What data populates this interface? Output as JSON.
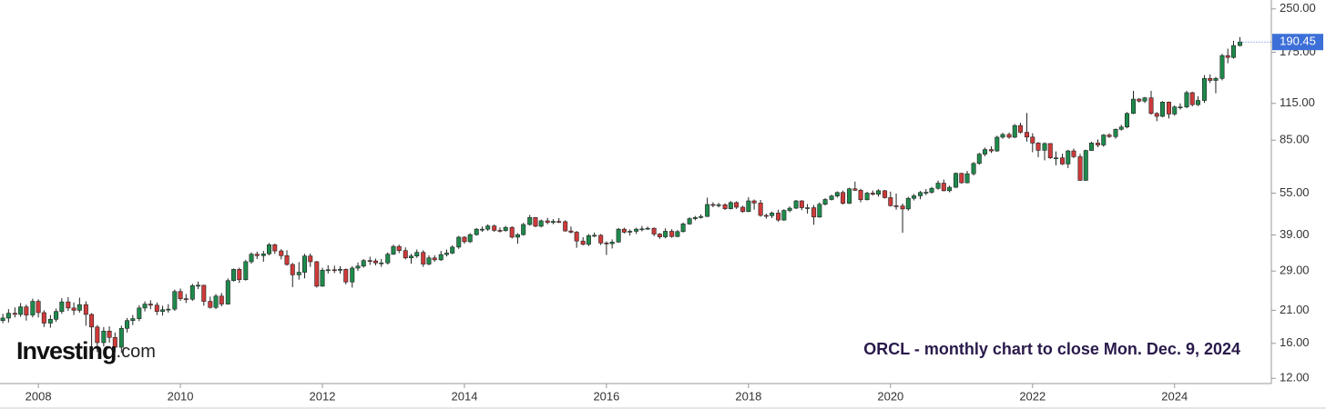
{
  "chart_data": {
    "type": "candlestick",
    "annotation": "ORCL - monthly chart to close Mon. Dec. 9, 2024",
    "watermark": {
      "brand": "Investing",
      "suffix": ".com"
    },
    "log_scale": true,
    "up_color": "#1e8a4c",
    "down_color": "#cf3a3a",
    "last_price_color": "#3d6fd8",
    "xlim": [
      2007.46,
      2025.35
    ],
    "xticks": [
      2008,
      2010,
      2012,
      2014,
      2016,
      2018,
      2020,
      2022,
      2024
    ],
    "ylim": [
      11.5,
      269
    ],
    "yticks": [
      {
        "value": 12,
        "label": "12.00"
      },
      {
        "value": 16,
        "label": "16.00"
      },
      {
        "value": 21,
        "label": "21.00"
      },
      {
        "value": 29,
        "label": "29.00"
      },
      {
        "value": 39,
        "label": "39.00"
      },
      {
        "value": 55,
        "label": "55.00"
      },
      {
        "value": 85,
        "label": "85.00"
      },
      {
        "value": 115,
        "label": "115.00"
      },
      {
        "value": 175,
        "label": "175.00"
      },
      {
        "value": 250,
        "label": "250.00"
      }
    ],
    "x": [
      2007.5,
      2007.58,
      2007.67,
      2007.75,
      2007.83,
      2007.92,
      2008,
      2008.08,
      2008.17,
      2008.25,
      2008.33,
      2008.42,
      2008.5,
      2008.58,
      2008.67,
      2008.75,
      2008.83,
      2008.92,
      2009,
      2009.08,
      2009.17,
      2009.25,
      2009.33,
      2009.42,
      2009.5,
      2009.58,
      2009.67,
      2009.75,
      2009.83,
      2009.92,
      2010,
      2010.08,
      2010.17,
      2010.25,
      2010.33,
      2010.42,
      2010.5,
      2010.58,
      2010.67,
      2010.75,
      2010.83,
      2010.92,
      2011,
      2011.08,
      2011.17,
      2011.25,
      2011.33,
      2011.42,
      2011.5,
      2011.58,
      2011.67,
      2011.75,
      2011.83,
      2011.92,
      2012,
      2012.08,
      2012.17,
      2012.25,
      2012.33,
      2012.42,
      2012.5,
      2012.58,
      2012.67,
      2012.75,
      2012.83,
      2012.92,
      2013,
      2013.08,
      2013.17,
      2013.25,
      2013.33,
      2013.42,
      2013.5,
      2013.58,
      2013.67,
      2013.75,
      2013.83,
      2013.92,
      2014,
      2014.08,
      2014.17,
      2014.25,
      2014.33,
      2014.42,
      2014.5,
      2014.58,
      2014.67,
      2014.75,
      2014.83,
      2014.92,
      2015,
      2015.08,
      2015.17,
      2015.25,
      2015.33,
      2015.42,
      2015.5,
      2015.58,
      2015.67,
      2015.75,
      2015.83,
      2015.92,
      2016,
      2016.08,
      2016.17,
      2016.25,
      2016.33,
      2016.42,
      2016.5,
      2016.58,
      2016.67,
      2016.75,
      2016.83,
      2016.92,
      2017,
      2017.08,
      2017.17,
      2017.25,
      2017.33,
      2017.42,
      2017.5,
      2017.58,
      2017.67,
      2017.75,
      2017.83,
      2017.92,
      2018,
      2018.08,
      2018.17,
      2018.25,
      2018.33,
      2018.42,
      2018.5,
      2018.58,
      2018.67,
      2018.75,
      2018.83,
      2018.92,
      2019,
      2019.08,
      2019.17,
      2019.25,
      2019.33,
      2019.42,
      2019.5,
      2019.58,
      2019.67,
      2019.75,
      2019.83,
      2019.92,
      2020,
      2020.08,
      2020.17,
      2020.25,
      2020.33,
      2020.42,
      2020.5,
      2020.58,
      2020.67,
      2020.75,
      2020.83,
      2020.92,
      2021,
      2021.08,
      2021.17,
      2021.25,
      2021.33,
      2021.42,
      2021.5,
      2021.58,
      2021.67,
      2021.75,
      2021.83,
      2021.92,
      2022,
      2022.08,
      2022.17,
      2022.25,
      2022.33,
      2022.42,
      2022.5,
      2022.58,
      2022.67,
      2022.75,
      2022.83,
      2022.92,
      2023,
      2023.08,
      2023.17,
      2023.25,
      2023.33,
      2023.42,
      2023.5,
      2023.58,
      2023.67,
      2023.75,
      2023.83,
      2023.92,
      2024,
      2024.08,
      2024.17,
      2024.25,
      2024.33,
      2024.42,
      2024.5,
      2024.58,
      2024.67,
      2024.75,
      2024.83,
      2024.92
    ],
    "ohlc": [
      [
        19.3,
        20.4,
        18.9,
        19.7
      ],
      [
        19.7,
        21.2,
        19.0,
        20.5
      ],
      [
        20.5,
        21.5,
        19.8,
        20.3
      ],
      [
        20.3,
        22.3,
        19.9,
        21.6
      ],
      [
        21.6,
        22.0,
        19.3,
        20.2
      ],
      [
        20.2,
        23.1,
        19.8,
        22.6
      ],
      [
        22.6,
        23.0,
        19.8,
        20.6
      ],
      [
        20.6,
        21.0,
        18.3,
        18.9
      ],
      [
        18.9,
        20.2,
        18.2,
        19.5
      ],
      [
        19.5,
        21.3,
        19.1,
        20.8
      ],
      [
        20.8,
        23.2,
        20.4,
        22.5
      ],
      [
        22.5,
        23.4,
        20.9,
        21.4
      ],
      [
        21.4,
        22.4,
        20.2,
        21.0
      ],
      [
        21.0,
        23.3,
        20.6,
        22.0
      ],
      [
        22.0,
        22.6,
        18.5,
        20.3
      ],
      [
        20.3,
        20.5,
        15.2,
        18.3
      ],
      [
        18.3,
        18.6,
        14.9,
        16.1
      ],
      [
        16.1,
        18.3,
        15.6,
        17.7
      ],
      [
        17.7,
        18.4,
        16.1,
        16.8
      ],
      [
        16.8,
        17.5,
        14.9,
        15.5
      ],
      [
        15.5,
        18.5,
        14.8,
        18.1
      ],
      [
        18.1,
        19.7,
        17.5,
        19.3
      ],
      [
        19.3,
        20.2,
        18.6,
        19.6
      ],
      [
        19.6,
        21.9,
        19.2,
        21.4
      ],
      [
        21.4,
        22.6,
        20.8,
        22.1
      ],
      [
        22.1,
        22.8,
        21.2,
        21.9
      ],
      [
        21.9,
        22.4,
        20.2,
        20.8
      ],
      [
        20.8,
        21.8,
        20.1,
        21.1
      ],
      [
        21.1,
        22.1,
        20.6,
        21.2
      ],
      [
        21.2,
        24.9,
        20.9,
        24.5
      ],
      [
        24.5,
        25.1,
        22.7,
        23.1
      ],
      [
        23.1,
        24.0,
        22.3,
        23.0
      ],
      [
        23.0,
        26.1,
        22.7,
        25.7
      ],
      [
        25.7,
        26.6,
        25.0,
        25.8
      ],
      [
        25.8,
        25.9,
        21.8,
        22.6
      ],
      [
        22.6,
        23.5,
        21.3,
        21.5
      ],
      [
        21.5,
        24.0,
        21.2,
        23.6
      ],
      [
        23.6,
        24.2,
        21.7,
        22.1
      ],
      [
        22.1,
        27.3,
        22.0,
        26.8
      ],
      [
        26.8,
        29.6,
        26.6,
        29.4
      ],
      [
        29.4,
        29.8,
        26.3,
        27.0
      ],
      [
        27.0,
        31.8,
        26.8,
        31.3
      ],
      [
        31.3,
        33.8,
        30.8,
        33.3
      ],
      [
        33.3,
        34.0,
        32.0,
        32.9
      ],
      [
        32.9,
        34.2,
        31.3,
        33.4
      ],
      [
        33.4,
        36.5,
        33.0,
        36.0
      ],
      [
        36.0,
        36.3,
        33.4,
        34.2
      ],
      [
        34.2,
        34.7,
        31.9,
        32.9
      ],
      [
        32.9,
        34.4,
        30.3,
        30.6
      ],
      [
        30.6,
        31.0,
        25.4,
        28.1
      ],
      [
        28.1,
        31.2,
        27.0,
        28.7
      ],
      [
        28.7,
        33.4,
        27.3,
        32.8
      ],
      [
        32.8,
        33.5,
        30.0,
        31.3
      ],
      [
        31.3,
        31.5,
        25.3,
        25.6
      ],
      [
        25.6,
        29.8,
        25.5,
        29.2
      ],
      [
        29.2,
        30.4,
        28.4,
        29.3
      ],
      [
        29.3,
        30.3,
        28.5,
        29.2
      ],
      [
        29.2,
        30.2,
        28.4,
        29.4
      ],
      [
        29.4,
        29.6,
        26.0,
        26.5
      ],
      [
        26.5,
        30.2,
        25.3,
        29.7
      ],
      [
        29.7,
        31.1,
        29.0,
        30.2
      ],
      [
        30.2,
        32.0,
        29.8,
        31.6
      ],
      [
        31.6,
        32.6,
        30.5,
        31.5
      ],
      [
        31.5,
        32.1,
        30.4,
        31.0
      ],
      [
        31.0,
        32.0,
        30.0,
        31.0
      ],
      [
        31.0,
        33.8,
        30.6,
        33.3
      ],
      [
        33.3,
        36.0,
        33.1,
        35.5
      ],
      [
        35.5,
        36.0,
        33.6,
        34.3
      ],
      [
        34.3,
        35.2,
        31.9,
        32.3
      ],
      [
        32.3,
        33.4,
        30.8,
        32.8
      ],
      [
        32.8,
        34.6,
        32.3,
        33.8
      ],
      [
        33.8,
        34.4,
        30.0,
        30.7
      ],
      [
        30.7,
        33.0,
        30.4,
        32.3
      ],
      [
        32.3,
        33.0,
        31.3,
        31.8
      ],
      [
        31.8,
        34.2,
        31.5,
        33.2
      ],
      [
        33.2,
        34.6,
        32.7,
        33.6
      ],
      [
        33.6,
        35.8,
        33.3,
        35.3
      ],
      [
        35.3,
        38.7,
        34.8,
        38.3
      ],
      [
        38.3,
        38.6,
        36.3,
        36.9
      ],
      [
        36.9,
        39.6,
        36.5,
        39.1
      ],
      [
        39.1,
        41.3,
        38.8,
        40.9
      ],
      [
        40.9,
        41.8,
        40.0,
        40.9
      ],
      [
        40.9,
        42.6,
        40.3,
        42.0
      ],
      [
        42.0,
        42.5,
        40.0,
        40.5
      ],
      [
        40.5,
        41.5,
        39.8,
        40.4
      ],
      [
        40.4,
        42.0,
        40.1,
        41.5
      ],
      [
        41.5,
        41.9,
        37.9,
        38.3
      ],
      [
        38.3,
        39.6,
        36.3,
        39.1
      ],
      [
        39.1,
        43.1,
        38.8,
        42.5
      ],
      [
        42.5,
        46.0,
        42.1,
        45.0
      ],
      [
        45.0,
        45.2,
        41.6,
        41.9
      ],
      [
        41.9,
        44.3,
        41.5,
        43.8
      ],
      [
        43.8,
        44.9,
        42.6,
        43.2
      ],
      [
        43.2,
        44.4,
        42.6,
        43.6
      ],
      [
        43.6,
        44.8,
        43.0,
        43.5
      ],
      [
        43.5,
        44.0,
        40.1,
        40.3
      ],
      [
        40.3,
        41.8,
        39.5,
        39.9
      ],
      [
        39.9,
        40.3,
        35.1,
        37.1
      ],
      [
        37.1,
        38.3,
        35.8,
        36.1
      ],
      [
        36.1,
        39.3,
        35.6,
        38.8
      ],
      [
        38.8,
        39.8,
        38.3,
        38.9
      ],
      [
        38.9,
        39.3,
        35.9,
        36.5
      ],
      [
        36.5,
        37.0,
        33.1,
        36.3
      ],
      [
        36.3,
        37.6,
        34.9,
        36.8
      ],
      [
        36.8,
        41.3,
        36.6,
        40.9
      ],
      [
        40.9,
        41.4,
        39.5,
        39.9
      ],
      [
        39.9,
        40.8,
        38.8,
        40.2
      ],
      [
        40.2,
        41.4,
        39.3,
        40.9
      ],
      [
        40.9,
        42.0,
        40.2,
        41.0
      ],
      [
        41.0,
        41.8,
        40.7,
        41.2
      ],
      [
        41.2,
        41.5,
        38.6,
        39.3
      ],
      [
        39.3,
        39.6,
        37.8,
        38.4
      ],
      [
        38.4,
        41.2,
        37.9,
        40.2
      ],
      [
        40.2,
        40.9,
        38.1,
        38.5
      ],
      [
        38.5,
        40.6,
        38.3,
        40.1
      ],
      [
        40.1,
        43.2,
        39.8,
        42.7
      ],
      [
        42.7,
        45.1,
        42.4,
        44.6
      ],
      [
        44.6,
        45.6,
        44.0,
        45.0
      ],
      [
        45.0,
        46.2,
        44.6,
        45.4
      ],
      [
        45.4,
        53.0,
        45.2,
        50.1
      ],
      [
        50.1,
        51.0,
        49.0,
        49.9
      ],
      [
        49.9,
        50.8,
        48.9,
        50.0
      ],
      [
        50.0,
        50.6,
        47.9,
        48.4
      ],
      [
        48.4,
        51.5,
        48.1,
        50.9
      ],
      [
        50.9,
        51.4,
        48.3,
        49.0
      ],
      [
        49.0,
        49.6,
        46.8,
        47.3
      ],
      [
        47.3,
        53.2,
        47.0,
        51.6
      ],
      [
        51.6,
        52.2,
        48.0,
        50.7
      ],
      [
        50.7,
        52.0,
        45.3,
        45.8
      ],
      [
        45.8,
        46.5,
        44.6,
        45.7
      ],
      [
        45.7,
        47.3,
        44.8,
        46.7
      ],
      [
        46.7,
        48.0,
        43.5,
        44.1
      ],
      [
        44.1,
        48.2,
        43.8,
        47.7
      ],
      [
        47.7,
        49.3,
        47.0,
        48.6
      ],
      [
        48.6,
        52.0,
        48.3,
        51.6
      ],
      [
        51.6,
        51.9,
        47.8,
        48.8
      ],
      [
        48.8,
        50.3,
        46.5,
        48.8
      ],
      [
        48.8,
        49.9,
        42.4,
        45.2
      ],
      [
        45.2,
        51.0,
        44.9,
        50.2
      ],
      [
        50.2,
        52.8,
        49.7,
        52.2
      ],
      [
        52.2,
        54.3,
        51.8,
        53.7
      ],
      [
        53.7,
        55.8,
        53.0,
        55.3
      ],
      [
        55.3,
        56.2,
        50.1,
        50.6
      ],
      [
        50.6,
        57.5,
        50.3,
        57.0
      ],
      [
        57.0,
        60.5,
        56.0,
        56.3
      ],
      [
        56.3,
        57.0,
        51.0,
        52.1
      ],
      [
        52.1,
        55.6,
        51.8,
        55.0
      ],
      [
        55.0,
        56.2,
        53.9,
        54.5
      ],
      [
        54.5,
        56.8,
        53.4,
        56.1
      ],
      [
        56.1,
        56.5,
        52.6,
        53.0
      ],
      [
        53.0,
        55.7,
        49.3,
        49.6
      ],
      [
        49.6,
        54.8,
        48.0,
        49.5
      ],
      [
        49.5,
        50.5,
        39.7,
        48.3
      ],
      [
        48.3,
        53.4,
        47.6,
        52.7
      ],
      [
        52.7,
        54.6,
        51.8,
        53.8
      ],
      [
        53.8,
        56.0,
        52.3,
        55.3
      ],
      [
        55.3,
        56.9,
        54.1,
        55.4
      ],
      [
        55.4,
        57.9,
        54.8,
        57.2
      ],
      [
        57.2,
        61.0,
        56.6,
        59.7
      ],
      [
        59.7,
        61.5,
        55.8,
        56.1
      ],
      [
        56.1,
        58.5,
        55.4,
        57.7
      ],
      [
        57.7,
        65.2,
        57.4,
        64.7
      ],
      [
        64.7,
        65.0,
        59.5,
        59.9
      ],
      [
        59.9,
        66.0,
        59.6,
        64.5
      ],
      [
        64.5,
        71.0,
        63.6,
        70.2
      ],
      [
        70.2,
        76.6,
        69.5,
        75.8
      ],
      [
        75.8,
        80.0,
        74.5,
        78.7
      ],
      [
        78.7,
        80.8,
        76.5,
        77.8
      ],
      [
        77.8,
        88.2,
        77.2,
        87.1
      ],
      [
        87.1,
        90.3,
        86.0,
        89.1
      ],
      [
        89.1,
        90.5,
        86.0,
        87.1
      ],
      [
        87.1,
        97.0,
        86.5,
        95.9
      ],
      [
        95.9,
        98.0,
        89.8,
        90.7
      ],
      [
        90.7,
        106.3,
        84.0,
        87.2
      ],
      [
        87.2,
        90.0,
        77.0,
        83.0
      ],
      [
        83.0,
        83.7,
        73.9,
        78.2
      ],
      [
        78.2,
        83.5,
        72.0,
        82.7
      ],
      [
        82.7,
        82.9,
        72.9,
        73.5
      ],
      [
        73.5,
        77.5,
        69.2,
        73.5
      ],
      [
        73.5,
        76.0,
        69.3,
        69.9
      ],
      [
        69.9,
        78.5,
        67.6,
        77.8
      ],
      [
        77.8,
        79.3,
        73.4,
        74.2
      ],
      [
        74.2,
        75.9,
        60.8,
        61.1
      ],
      [
        61.1,
        78.6,
        60.8,
        78.1
      ],
      [
        78.1,
        83.9,
        77.8,
        83.0
      ],
      [
        83.0,
        85.5,
        80.2,
        81.7
      ],
      [
        81.7,
        89.3,
        80.5,
        88.7
      ],
      [
        88.7,
        89.9,
        86.6,
        87.5
      ],
      [
        87.5,
        93.6,
        86.0,
        92.9
      ],
      [
        92.9,
        96.5,
        92.0,
        94.7
      ],
      [
        94.7,
        107.0,
        93.7,
        105.9
      ],
      [
        105.9,
        127.5,
        105.3,
        119.1
      ],
      [
        119.1,
        120.2,
        115.8,
        117.2
      ],
      [
        117.2,
        121.3,
        115.4,
        120.4
      ],
      [
        120.4,
        127.5,
        104.8,
        105.9
      ],
      [
        105.9,
        107.0,
        99.3,
        103.4
      ],
      [
        103.4,
        117.2,
        102.6,
        116.2
      ],
      [
        116.2,
        116.8,
        101.6,
        105.4
      ],
      [
        105.4,
        113.0,
        103.9,
        111.7
      ],
      [
        111.7,
        115.0,
        109.3,
        111.7
      ],
      [
        111.7,
        127.5,
        110.6,
        125.6
      ],
      [
        125.6,
        126.5,
        112.3,
        113.8
      ],
      [
        113.8,
        122.0,
        112.5,
        117.8
      ],
      [
        117.8,
        145.0,
        115.5,
        141.2
      ],
      [
        141.2,
        146.0,
        136.0,
        138.9
      ],
      [
        138.9,
        143.0,
        125.0,
        141.2
      ],
      [
        141.2,
        172.8,
        139.0,
        170.4
      ],
      [
        170.4,
        180.3,
        160.0,
        167.8
      ],
      [
        167.8,
        192.3,
        166.0,
        185.0
      ],
      [
        185.0,
        198.3,
        183.6,
        190.45
      ]
    ]
  }
}
